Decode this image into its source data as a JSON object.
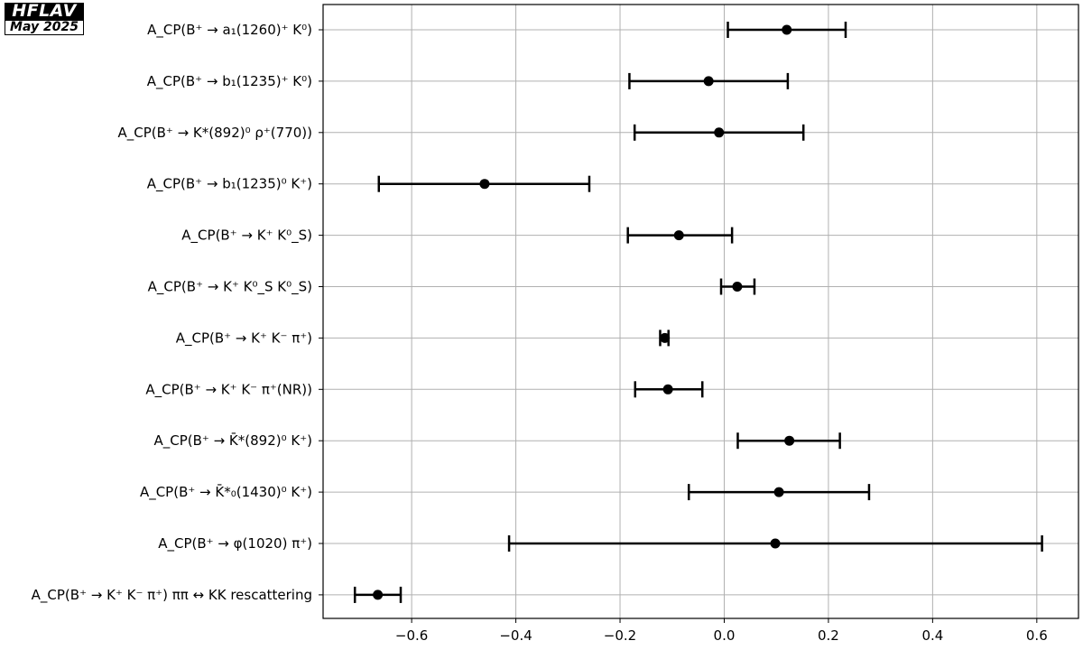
{
  "logo": {
    "line1": "HFLAV",
    "line2": "May 2025"
  },
  "chart_data": {
    "type": "scatter",
    "style": "errorbar",
    "xlim": [
      -0.77,
      0.68
    ],
    "grid": true,
    "xticks": [
      -0.6,
      -0.4,
      -0.2,
      0.0,
      0.2,
      0.4,
      0.6
    ],
    "xtick_labels": [
      "−0.6",
      "−0.4",
      "−0.2",
      "0.0",
      "0.2",
      "0.4",
      "0.6"
    ],
    "categories": [
      "A_CP(B⁺ → a₁(1260)⁺ K⁰)",
      "A_CP(B⁺ → b₁(1235)⁺ K⁰)",
      "A_CP(B⁺ → K*(892)⁰ ρ⁺(770))",
      "A_CP(B⁺ → b₁(1235)⁰ K⁺)",
      "A_CP(B⁺ → K⁺ K⁰_S)",
      "A_CP(B⁺ → K⁺ K⁰_S K⁰_S)",
      "A_CP(B⁺ → K⁺ K⁻ π⁺)",
      "A_CP(B⁺ → K⁺ K⁻ π⁺(NR))",
      "A_CP(B⁺ → K̄*(892)⁰ K⁺)",
      "A_CP(B⁺ → K̄*₀(1430)⁰ K⁺)",
      "A_CP(B⁺ → φ(1020) π⁺)",
      "A_CP(B⁺ → K⁺ K⁻ π⁺) ππ ↔ KK rescattering"
    ],
    "values": [
      0.12,
      -0.03,
      -0.01,
      -0.46,
      -0.087,
      0.025,
      -0.114,
      -0.108,
      0.125,
      0.105,
      0.098,
      -0.665
    ],
    "lower": [
      0.007,
      -0.182,
      -0.172,
      -0.663,
      -0.185,
      -0.006,
      -0.123,
      -0.171,
      0.026,
      -0.068,
      -0.413,
      -0.709
    ],
    "upper": [
      0.233,
      0.122,
      0.152,
      -0.259,
      0.015,
      0.058,
      -0.107,
      -0.042,
      0.222,
      0.278,
      0.61,
      -0.621
    ],
    "marker_color": "#000000",
    "grid_color": "#b0b0b0"
  }
}
